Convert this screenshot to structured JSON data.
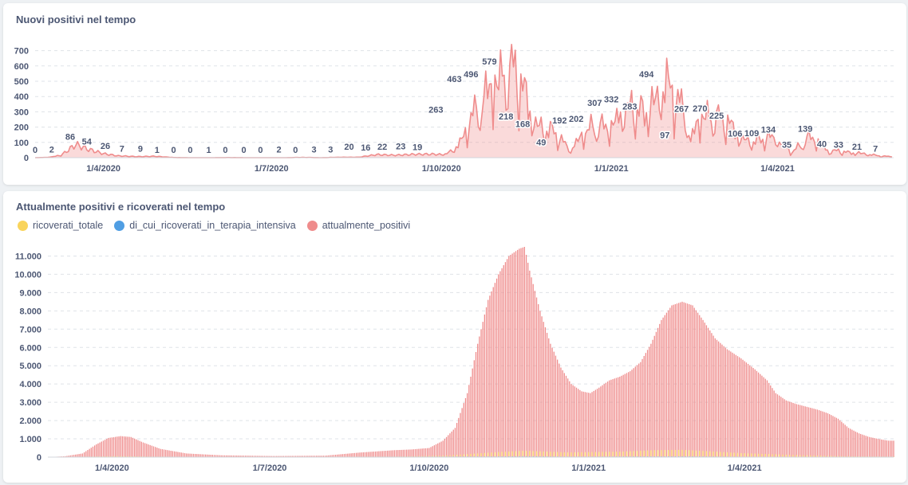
{
  "colors": {
    "positivi": "#ef8c8c",
    "ricoverati_totale": "#f9d45c",
    "terapia_intensiva": "#509ee3",
    "grid": "#dfe3e8",
    "axis_text": "#4c5773"
  },
  "chart_data": [
    {
      "type": "area",
      "title": "Nuovi positivi nel tempo",
      "series_name": "nuovi_positivi",
      "x_range": [
        "2020-02-24",
        "2021-06-27"
      ],
      "ylim": [
        0,
        750
      ],
      "y_ticks": [
        0,
        100,
        200,
        300,
        400,
        500,
        600,
        700
      ],
      "x_tick_labels": [
        "1/4/2020",
        "1/7/2020",
        "1/10/2020",
        "1/1/2021",
        "1/4/2021"
      ],
      "x_tick_days": [
        37,
        128,
        220,
        312,
        402
      ],
      "anchors": [
        [
          0,
          0
        ],
        [
          7,
          2
        ],
        [
          14,
          15
        ],
        [
          22,
          86
        ],
        [
          29,
          54
        ],
        [
          37,
          26
        ],
        [
          45,
          12
        ],
        [
          55,
          7
        ],
        [
          65,
          9
        ],
        [
          75,
          1
        ],
        [
          85,
          0
        ],
        [
          95,
          0
        ],
        [
          105,
          1
        ],
        [
          115,
          0
        ],
        [
          125,
          0
        ],
        [
          135,
          0
        ],
        [
          145,
          2
        ],
        [
          155,
          0
        ],
        [
          165,
          3
        ],
        [
          175,
          3
        ],
        [
          185,
          20
        ],
        [
          195,
          16
        ],
        [
          205,
          22
        ],
        [
          215,
          23
        ],
        [
          222,
          19
        ],
        [
          227,
          60
        ],
        [
          232,
          130
        ],
        [
          236,
          263
        ],
        [
          241,
          330
        ],
        [
          246,
          463
        ],
        [
          251,
          496
        ],
        [
          254,
          560
        ],
        [
          258,
          579
        ],
        [
          262,
          520
        ],
        [
          265,
          430
        ],
        [
          268,
          300
        ],
        [
          271,
          218
        ],
        [
          276,
          190
        ],
        [
          281,
          168
        ],
        [
          286,
          100
        ],
        [
          290,
          49
        ],
        [
          295,
          130
        ],
        [
          300,
          192
        ],
        [
          304,
          205
        ],
        [
          308,
          202
        ],
        [
          312,
          200
        ],
        [
          318,
          307
        ],
        [
          324,
          332
        ],
        [
          330,
          283
        ],
        [
          336,
          380
        ],
        [
          342,
          494
        ],
        [
          347,
          380
        ],
        [
          352,
          300
        ],
        [
          355,
          97
        ],
        [
          358,
          230
        ],
        [
          362,
          267
        ],
        [
          367,
          270
        ],
        [
          372,
          250
        ],
        [
          376,
          225
        ],
        [
          381,
          140
        ],
        [
          386,
          106
        ],
        [
          391,
          109
        ],
        [
          397,
          134
        ],
        [
          401,
          130
        ],
        [
          406,
          70
        ],
        [
          410,
          35
        ],
        [
          415,
          90
        ],
        [
          420,
          139
        ],
        [
          425,
          90
        ],
        [
          430,
          40
        ],
        [
          435,
          45
        ],
        [
          440,
          33
        ],
        [
          446,
          30
        ],
        [
          452,
          21
        ],
        [
          458,
          10
        ],
        [
          464,
          7
        ]
      ],
      "data_labels": [
        {
          "day": 0,
          "value": 0,
          "text": "0"
        },
        {
          "day": 9,
          "value": 2,
          "text": "2"
        },
        {
          "day": 19,
          "value": 86,
          "text": "86"
        },
        {
          "day": 28,
          "value": 54,
          "text": "54"
        },
        {
          "day": 38,
          "value": 26,
          "text": "26"
        },
        {
          "day": 47,
          "value": 7,
          "text": "7"
        },
        {
          "day": 57,
          "value": 9,
          "text": "9"
        },
        {
          "day": 66,
          "value": 1,
          "text": "1"
        },
        {
          "day": 75,
          "value": 0,
          "text": "0"
        },
        {
          "day": 84,
          "value": 0,
          "text": "0"
        },
        {
          "day": 94,
          "value": 1,
          "text": "1"
        },
        {
          "day": 103,
          "value": 0,
          "text": "0"
        },
        {
          "day": 113,
          "value": 0,
          "text": "0"
        },
        {
          "day": 122,
          "value": 0,
          "text": "0"
        },
        {
          "day": 132,
          "value": 2,
          "text": "2"
        },
        {
          "day": 141,
          "value": 0,
          "text": "0"
        },
        {
          "day": 151,
          "value": 3,
          "text": "3"
        },
        {
          "day": 160,
          "value": 3,
          "text": "3"
        },
        {
          "day": 170,
          "value": 20,
          "text": "20"
        },
        {
          "day": 179,
          "value": 16,
          "text": "16"
        },
        {
          "day": 188,
          "value": 22,
          "text": "22"
        },
        {
          "day": 198,
          "value": 23,
          "text": "23"
        },
        {
          "day": 207,
          "value": 19,
          "text": "19"
        },
        {
          "day": 217,
          "value": 263,
          "text": "263"
        },
        {
          "day": 227,
          "value": 463,
          "text": "463"
        },
        {
          "day": 236,
          "value": 496,
          "text": "496"
        },
        {
          "day": 246,
          "value": 579,
          "text": "579"
        },
        {
          "day": 255,
          "value": 218,
          "text": "218"
        },
        {
          "day": 264,
          "value": 168,
          "text": "168"
        },
        {
          "day": 274,
          "value": 49,
          "text": "49"
        },
        {
          "day": 284,
          "value": 192,
          "text": "192"
        },
        {
          "day": 293,
          "value": 202,
          "text": "202"
        },
        {
          "day": 303,
          "value": 307,
          "text": "307"
        },
        {
          "day": 312,
          "value": 332,
          "text": "332"
        },
        {
          "day": 322,
          "value": 283,
          "text": "283"
        },
        {
          "day": 331,
          "value": 494,
          "text": "494"
        },
        {
          "day": 341,
          "value": 97,
          "text": "97"
        },
        {
          "day": 350,
          "value": 267,
          "text": "267"
        },
        {
          "day": 360,
          "value": 270,
          "text": "270"
        },
        {
          "day": 369,
          "value": 225,
          "text": "225"
        },
        {
          "day": 379,
          "value": 106,
          "text": "106"
        },
        {
          "day": 388,
          "value": 109,
          "text": "109"
        },
        {
          "day": 397,
          "value": 134,
          "text": "134"
        },
        {
          "day": 407,
          "value": 35,
          "text": "35"
        },
        {
          "day": 417,
          "value": 139,
          "text": "139"
        },
        {
          "day": 426,
          "value": 40,
          "text": "40"
        },
        {
          "day": 435,
          "value": 33,
          "text": "33"
        },
        {
          "day": 445,
          "value": 21,
          "text": "21"
        },
        {
          "day": 455,
          "value": 7,
          "text": "7"
        }
      ]
    },
    {
      "type": "bar",
      "title": "Attualmente positivi e ricoverati nel tempo",
      "legend": [
        "ricoverati_totale",
        "di_cui_ricoverati_in_terapia_intensiva",
        "attualmente_positivi"
      ],
      "x_range": [
        "2020-02-24",
        "2021-06-27"
      ],
      "ylim": [
        0,
        11500
      ],
      "y_ticks": [
        0,
        1000,
        2000,
        3000,
        4000,
        5000,
        6000,
        7000,
        8000,
        9000,
        10000,
        11000
      ],
      "y_tick_labels": [
        "0",
        "1.000",
        "2.000",
        "3.000",
        "4.000",
        "5.000",
        "6.000",
        "7.000",
        "8.000",
        "9.000",
        "10.000",
        "11.000"
      ],
      "x_tick_labels": [
        "1/4/2020",
        "1/7/2020",
        "1/10/2020",
        "1/1/2021",
        "1/4/2021"
      ],
      "x_tick_days": [
        37,
        128,
        220,
        312,
        402
      ],
      "attualmente_positivi_anchors": [
        [
          0,
          0
        ],
        [
          10,
          50
        ],
        [
          20,
          200
        ],
        [
          28,
          700
        ],
        [
          35,
          1050
        ],
        [
          42,
          1150
        ],
        [
          48,
          1100
        ],
        [
          55,
          800
        ],
        [
          65,
          450
        ],
        [
          80,
          200
        ],
        [
          100,
          100
        ],
        [
          130,
          60
        ],
        [
          160,
          80
        ],
        [
          180,
          250
        ],
        [
          200,
          380
        ],
        [
          210,
          420
        ],
        [
          220,
          500
        ],
        [
          228,
          900
        ],
        [
          235,
          1600
        ],
        [
          242,
          3500
        ],
        [
          248,
          6200
        ],
        [
          254,
          8600
        ],
        [
          260,
          10000
        ],
        [
          266,
          11000
        ],
        [
          272,
          11400
        ],
        [
          275,
          11500
        ],
        [
          278,
          10200
        ],
        [
          284,
          8000
        ],
        [
          290,
          6200
        ],
        [
          296,
          4900
        ],
        [
          302,
          4000
        ],
        [
          308,
          3600
        ],
        [
          313,
          3500
        ],
        [
          318,
          3800
        ],
        [
          324,
          4200
        ],
        [
          330,
          4400
        ],
        [
          336,
          4700
        ],
        [
          342,
          5200
        ],
        [
          348,
          6200
        ],
        [
          354,
          7500
        ],
        [
          360,
          8300
        ],
        [
          366,
          8500
        ],
        [
          372,
          8300
        ],
        [
          378,
          7500
        ],
        [
          385,
          6500
        ],
        [
          392,
          5900
        ],
        [
          400,
          5400
        ],
        [
          408,
          4800
        ],
        [
          415,
          4200
        ],
        [
          420,
          3500
        ],
        [
          426,
          3100
        ],
        [
          432,
          2900
        ],
        [
          438,
          2750
        ],
        [
          444,
          2600
        ],
        [
          450,
          2400
        ],
        [
          456,
          2100
        ],
        [
          462,
          1600
        ],
        [
          468,
          1300
        ],
        [
          474,
          1100
        ],
        [
          480,
          980
        ],
        [
          485,
          900
        ]
      ],
      "ricoverati_totale_anchors": [
        [
          0,
          0
        ],
        [
          25,
          30
        ],
        [
          40,
          60
        ],
        [
          60,
          30
        ],
        [
          100,
          10
        ],
        [
          200,
          30
        ],
        [
          230,
          90
        ],
        [
          260,
          280
        ],
        [
          275,
          350
        ],
        [
          300,
          260
        ],
        [
          330,
          300
        ],
        [
          350,
          380
        ],
        [
          366,
          400
        ],
        [
          380,
          330
        ],
        [
          400,
          220
        ],
        [
          430,
          120
        ],
        [
          460,
          50
        ],
        [
          485,
          30
        ]
      ],
      "terapia_intensiva_anchors": [
        [
          0,
          0
        ],
        [
          40,
          8
        ],
        [
          100,
          2
        ],
        [
          260,
          40
        ],
        [
          275,
          50
        ],
        [
          300,
          30
        ],
        [
          366,
          45
        ],
        [
          400,
          25
        ],
        [
          485,
          5
        ]
      ]
    }
  ]
}
